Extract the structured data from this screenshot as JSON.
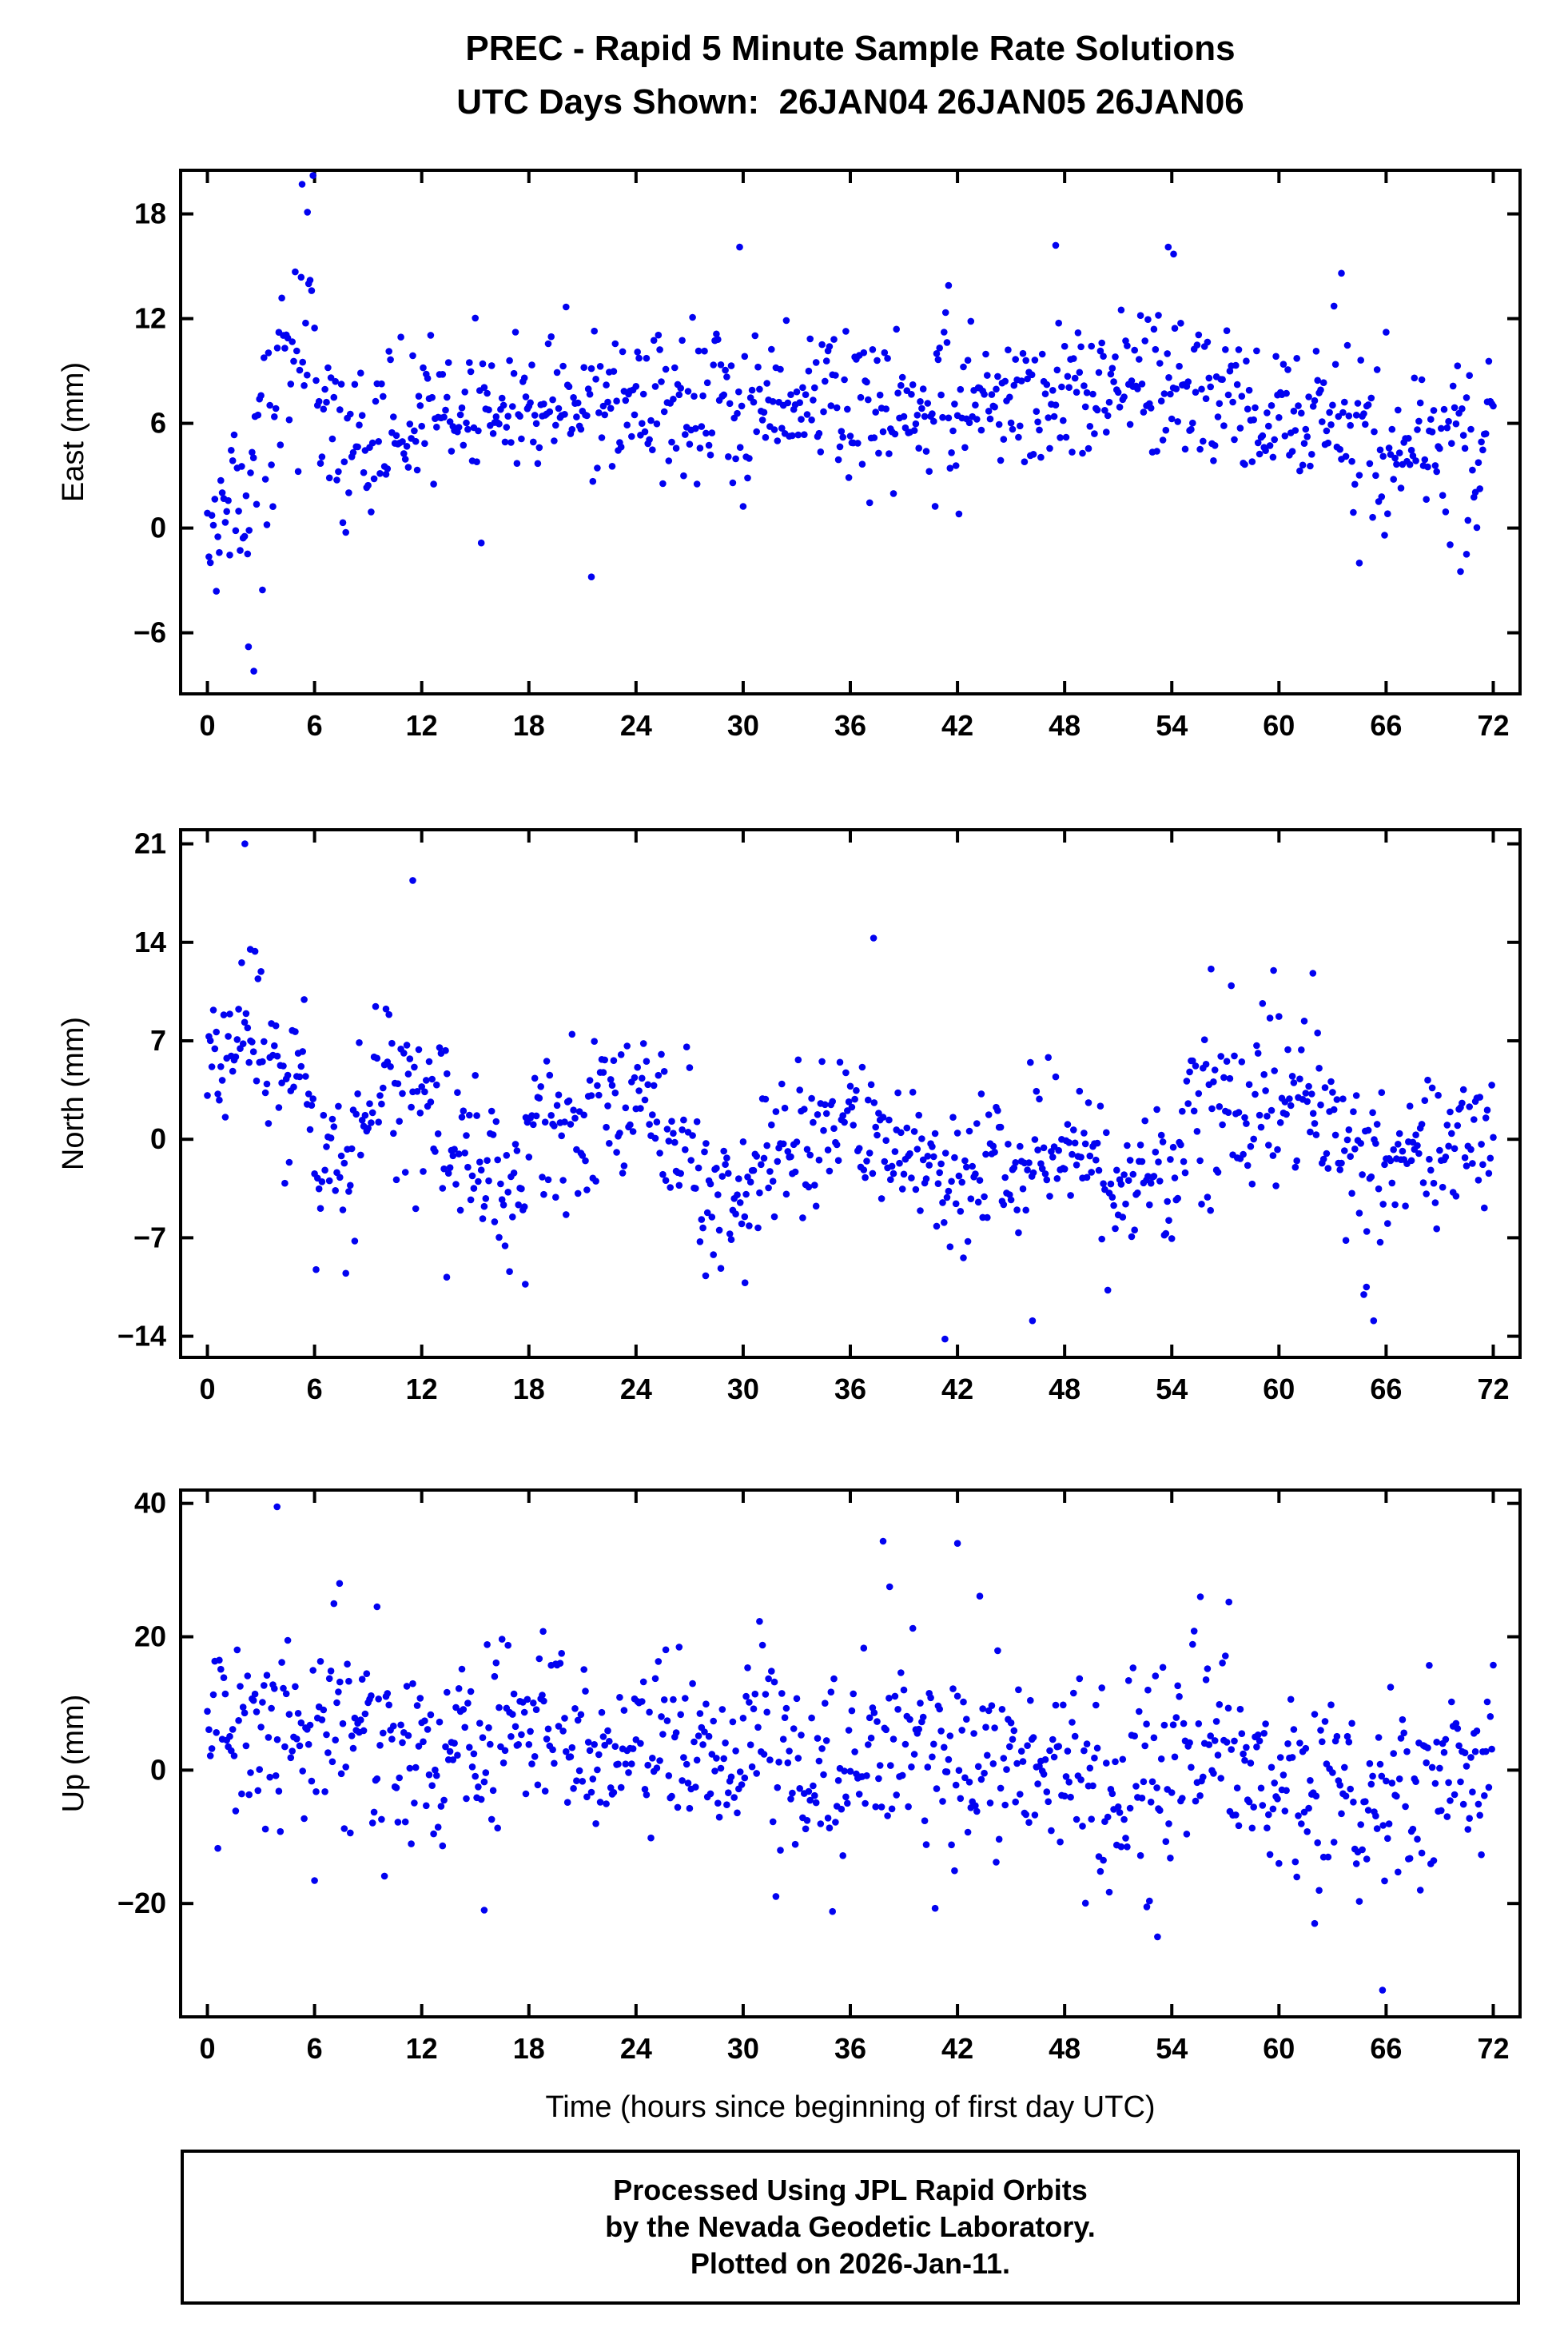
{
  "title": {
    "line1": "PREC - Rapid 5 Minute Sample Rate Solutions",
    "line2": "UTC Days Shown:  26JAN04 26JAN05 26JAN06"
  },
  "footer": {
    "line1": "Processed Using JPL Rapid Orbits",
    "line2": "by the Nevada Geodetic Laboratory.",
    "line3": "Plotted on 2026-Jan-11."
  },
  "style": {
    "point_color": "#0202f0",
    "axis_color": "#000000"
  },
  "chart_data": {
    "type": "scatter",
    "title": "PREC - Rapid 5 Minute Sample Rate Solutions",
    "subtitle": "UTC Days Shown:  26JAN04 26JAN05 26JAN06",
    "xlabel": "Time (hours since beginning of first day UTC)",
    "x": {
      "xlim": [
        -1.5,
        73.5
      ],
      "xticks": [
        0,
        6,
        12,
        18,
        24,
        30,
        36,
        42,
        48,
        54,
        60,
        66,
        72
      ],
      "samples_per_hour": 12,
      "hours_total": 72
    },
    "legend": "none",
    "grid": false,
    "panels": [
      {
        "name": "east",
        "ylabel": "East (mm)",
        "ylim": [
          -9.5,
          20.5
        ],
        "yticks": [
          -6,
          0,
          6,
          12,
          18
        ],
        "seed": 7,
        "segments": [
          {
            "from": 0,
            "to": 2.5,
            "m0": 0.5,
            "m1": 1.0,
            "sd": 2.5
          },
          {
            "from": 2.5,
            "to": 4,
            "m0": 2.0,
            "m1": 7.0,
            "sd": 3.0
          },
          {
            "from": 4,
            "to": 6,
            "m0": 8.0,
            "m1": 13.0,
            "sd": 3.0
          },
          {
            "from": 6,
            "to": 7.5,
            "m0": 9.0,
            "m1": 5.0,
            "sd": 2.5
          },
          {
            "from": 7.5,
            "to": 12,
            "m0": 4.5,
            "m1": 6.0,
            "sd": 2.2
          },
          {
            "from": 12,
            "to": 24,
            "m0": 7.0,
            "m1": 7.0,
            "sd": 2.0
          },
          {
            "from": 24,
            "to": 36,
            "m0": 6.5,
            "m1": 7.5,
            "sd": 2.2
          },
          {
            "from": 36,
            "to": 48,
            "m0": 7.0,
            "m1": 7.5,
            "sd": 2.3
          },
          {
            "from": 48,
            "to": 56,
            "m0": 8.0,
            "m1": 8.0,
            "sd": 2.3
          },
          {
            "from": 56,
            "to": 64,
            "m0": 6.5,
            "m1": 7.0,
            "sd": 2.2
          },
          {
            "from": 64,
            "to": 72,
            "m0": 4.5,
            "m1": 4.5,
            "sd": 2.4
          }
        ],
        "outliers": [
          [
            5.3,
            19.7
          ],
          [
            5.6,
            18.1
          ],
          [
            2.3,
            -6.8
          ],
          [
            2.6,
            -8.2
          ],
          [
            21.5,
            -2.8
          ],
          [
            29.8,
            16.1
          ],
          [
            47.5,
            16.2
          ],
          [
            53.8,
            16.1
          ],
          [
            54.1,
            15.7
          ],
          [
            63.5,
            14.6
          ],
          [
            41.5,
            13.9
          ],
          [
            64.5,
            -2.0
          ],
          [
            70.5,
            -1.5
          ]
        ]
      },
      {
        "name": "north",
        "ylabel": "North (mm)",
        "ylim": [
          -15.5,
          22
        ],
        "yticks": [
          -14,
          -7,
          0,
          7,
          14,
          21
        ],
        "seed": 13,
        "segments": [
          {
            "from": 0,
            "to": 3,
            "m0": 6,
            "m1": 7,
            "sd": 3.5
          },
          {
            "from": 3,
            "to": 6,
            "m0": 5,
            "m1": 2,
            "sd": 3.0
          },
          {
            "from": 6,
            "to": 8,
            "m0": -2,
            "m1": -3,
            "sd": 2.5
          },
          {
            "from": 8,
            "to": 12,
            "m0": 1,
            "m1": 4,
            "sd": 3.0
          },
          {
            "from": 12,
            "to": 15,
            "m0": 3,
            "m1": -1,
            "sd": 3.0
          },
          {
            "from": 15,
            "to": 18,
            "m0": -2,
            "m1": -3,
            "sd": 3.0
          },
          {
            "from": 18,
            "to": 24,
            "m0": 0,
            "m1": 2,
            "sd": 3.0
          },
          {
            "from": 24,
            "to": 27,
            "m0": 3,
            "m1": 0,
            "sd": 2.5
          },
          {
            "from": 27,
            "to": 31,
            "m0": -3,
            "m1": -4,
            "sd": 2.5
          },
          {
            "from": 31,
            "to": 36,
            "m0": -1,
            "m1": 1,
            "sd": 2.5
          },
          {
            "from": 36,
            "to": 40,
            "m0": 1,
            "m1": -2,
            "sd": 2.5
          },
          {
            "from": 40,
            "to": 46,
            "m0": -3,
            "m1": -2,
            "sd": 2.5
          },
          {
            "from": 46,
            "to": 50,
            "m0": 0,
            "m1": -1,
            "sd": 2.5
          },
          {
            "from": 50,
            "to": 54,
            "m0": -3,
            "m1": -4,
            "sd": 2.5
          },
          {
            "from": 54,
            "to": 58,
            "m0": 0,
            "m1": 3,
            "sd": 3.0
          },
          {
            "from": 58,
            "to": 62,
            "m0": 3,
            "m1": 2,
            "sd": 3.0
          },
          {
            "from": 62,
            "to": 66,
            "m0": 0,
            "m1": -3,
            "sd": 3.0
          },
          {
            "from": 66,
            "to": 72,
            "m0": -1,
            "m1": 0,
            "sd": 2.5
          }
        ],
        "outliers": [
          [
            2.1,
            21.0
          ],
          [
            2.4,
            13.5
          ],
          [
            11.5,
            18.4
          ],
          [
            37.3,
            14.3
          ],
          [
            41.3,
            -14.2
          ],
          [
            46.2,
            -12.9
          ],
          [
            13.4,
            -9.8
          ],
          [
            17.8,
            -10.3
          ],
          [
            65.3,
            -12.9
          ],
          [
            64.9,
            -10.5
          ],
          [
            30.1,
            -10.2
          ],
          [
            27.9,
            -9.7
          ],
          [
            56.2,
            12.1
          ],
          [
            59.7,
            12.0
          ],
          [
            61.9,
            11.8
          ]
        ]
      },
      {
        "name": "up",
        "ylabel": "Up (mm)",
        "ylim": [
          -37,
          42
        ],
        "yticks": [
          -20,
          0,
          20,
          40
        ],
        "seed": 29,
        "segments": [
          {
            "from": 0,
            "to": 4,
            "m0": 6,
            "m1": 8,
            "sd": 7
          },
          {
            "from": 4,
            "to": 8,
            "m0": 8,
            "m1": 6,
            "sd": 8
          },
          {
            "from": 8,
            "to": 12,
            "m0": 6,
            "m1": 4,
            "sd": 7
          },
          {
            "from": 12,
            "to": 16,
            "m0": 2,
            "m1": 2,
            "sd": 7
          },
          {
            "from": 16,
            "to": 20,
            "m0": 6,
            "m1": 8,
            "sd": 7
          },
          {
            "from": 20,
            "to": 24,
            "m0": 4,
            "m1": 4,
            "sd": 6
          },
          {
            "from": 24,
            "to": 28,
            "m0": 6,
            "m1": 4,
            "sd": 7
          },
          {
            "from": 28,
            "to": 32,
            "m0": 2,
            "m1": 4,
            "sd": 7
          },
          {
            "from": 32,
            "to": 36,
            "m0": 0,
            "m1": -2,
            "sd": 7
          },
          {
            "from": 36,
            "to": 40,
            "m0": 4,
            "m1": 6,
            "sd": 8
          },
          {
            "from": 40,
            "to": 44,
            "m0": 2,
            "m1": 0,
            "sd": 8
          },
          {
            "from": 44,
            "to": 48,
            "m0": 0,
            "m1": 2,
            "sd": 7
          },
          {
            "from": 48,
            "to": 52,
            "m0": 2,
            "m1": -4,
            "sd": 8
          },
          {
            "from": 52,
            "to": 56,
            "m0": 0,
            "m1": 8,
            "sd": 9
          },
          {
            "from": 56,
            "to": 60,
            "m0": 2,
            "m1": 0,
            "sd": 7
          },
          {
            "from": 60,
            "to": 64,
            "m0": 0,
            "m1": -6,
            "sd": 8
          },
          {
            "from": 64,
            "to": 68,
            "m0": -6,
            "m1": -2,
            "sd": 8
          },
          {
            "from": 68,
            "to": 72,
            "m0": 0,
            "m1": 2,
            "sd": 6
          }
        ],
        "outliers": [
          [
            3.9,
            39.5
          ],
          [
            42.0,
            34.0
          ],
          [
            7.4,
            28.0
          ],
          [
            55.6,
            26.0
          ],
          [
            38.2,
            27.5
          ],
          [
            9.5,
            24.5
          ],
          [
            18.8,
            20.8
          ],
          [
            53.2,
            -25.0
          ],
          [
            65.8,
            -33.0
          ],
          [
            15.5,
            -21.0
          ],
          [
            62.0,
            -23.0
          ],
          [
            52.6,
            -20.5
          ],
          [
            57.2,
            25.2
          ]
        ]
      }
    ]
  }
}
